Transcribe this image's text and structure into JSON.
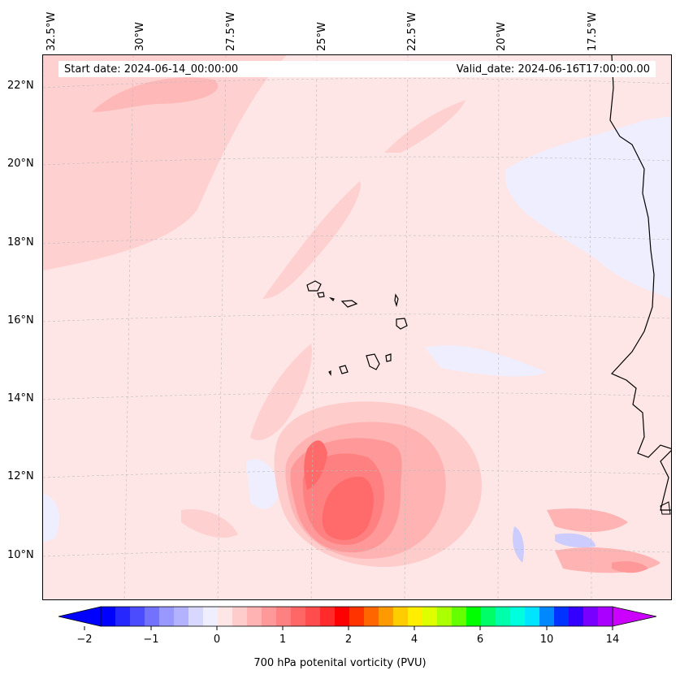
{
  "map": {
    "start_date": "Start date: 2024-06-14_00:00:00",
    "valid_date": "Valid_date: 2024-06-16T17:00:00.00",
    "lon_labels": [
      "32.5°W",
      "30°W",
      "27.5°W",
      "25°W",
      "22.5°W",
      "20°W",
      "17.5°W"
    ],
    "lat_labels": [
      "22°N",
      "20°N",
      "18°N",
      "16°N",
      "14°N",
      "12°N",
      "10°N"
    ]
  },
  "colorbar": {
    "title": "700 hPa potenital vorticity (PVU)",
    "tick_labels": [
      "−2",
      "−1",
      "0",
      "1",
      "2",
      "4",
      "6",
      "10",
      "14"
    ],
    "colors": [
      "#0000ff",
      "#2626ff",
      "#4c4cff",
      "#7272ff",
      "#9898ff",
      "#b2b2ff",
      "#d8d8ff",
      "#eeeeff",
      "#ffe6e6",
      "#ffcccc",
      "#ffb3b3",
      "#ff9999",
      "#ff8080",
      "#ff6666",
      "#ff4d4d",
      "#ff2b2b",
      "#ff0000",
      "#ff3300",
      "#ff6600",
      "#ff9900",
      "#ffcc00",
      "#ffee00",
      "#ddff00",
      "#aaff00",
      "#66ff00",
      "#00ff00",
      "#00ff66",
      "#00ffaa",
      "#00ffdd",
      "#00e5ff",
      "#0088ff",
      "#0033ff",
      "#3300ff",
      "#7700ff",
      "#aa00ff"
    ],
    "under_color": "#0000ff",
    "over_color": "#cc00ff"
  }
}
